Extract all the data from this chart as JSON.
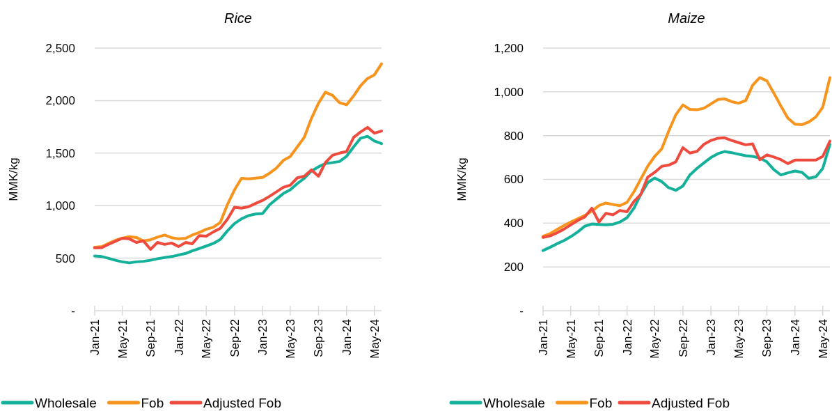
{
  "chart_data": [
    {
      "type": "line",
      "title": "Rice",
      "ylabel": "MMK/kg",
      "xlim": [
        "2021-01",
        "2024-06"
      ],
      "ylim": [
        0,
        2500
      ],
      "xticks": [
        {
          "value": "2021-01",
          "label": "Jan-21"
        },
        {
          "value": "2021-05",
          "label": "May-21"
        },
        {
          "value": "2021-09",
          "label": "Sep-21"
        },
        {
          "value": "2022-01",
          "label": "Jan-22"
        },
        {
          "value": "2022-05",
          "label": "May-22"
        },
        {
          "value": "2022-09",
          "label": "Sep-22"
        },
        {
          "value": "2023-01",
          "label": "Jan-23"
        },
        {
          "value": "2023-05",
          "label": "May-23"
        },
        {
          "value": "2023-09",
          "label": "Sep-23"
        },
        {
          "value": "2024-01",
          "label": "Jan-24"
        },
        {
          "value": "2024-05",
          "label": "May-24"
        }
      ],
      "yticks": [
        {
          "value": 0,
          "label": "-"
        },
        500,
        {
          "value": 1000,
          "label": "1,000"
        },
        {
          "value": 1500,
          "label": "1,500"
        },
        {
          "value": 2000,
          "label": "2,000"
        },
        {
          "value": 2500,
          "label": "2,500"
        }
      ],
      "grid": "y",
      "legend": "bottom",
      "x": [
        "2021-01",
        "2021-02",
        "2021-03",
        "2021-04",
        "2021-05",
        "2021-06",
        "2021-07",
        "2021-08",
        "2021-09",
        "2021-10",
        "2021-11",
        "2021-12",
        "2022-01",
        "2022-02",
        "2022-03",
        "2022-04",
        "2022-05",
        "2022-06",
        "2022-07",
        "2022-08",
        "2022-09",
        "2022-10",
        "2022-11",
        "2022-12",
        "2023-01",
        "2023-02",
        "2023-03",
        "2023-04",
        "2023-05",
        "2023-06",
        "2023-07",
        "2023-08",
        "2023-09",
        "2023-10",
        "2023-11",
        "2023-12",
        "2024-01",
        "2024-02",
        "2024-03",
        "2024-04",
        "2024-05",
        "2024-06"
      ],
      "series": [
        {
          "name": "Wholesale",
          "color": "#13b09a",
          "values": [
            520,
            515,
            500,
            480,
            465,
            455,
            465,
            470,
            480,
            495,
            505,
            515,
            530,
            545,
            570,
            592,
            615,
            640,
            678,
            760,
            830,
            875,
            905,
            920,
            925,
            1010,
            1060,
            1115,
            1150,
            1210,
            1260,
            1330,
            1370,
            1400,
            1410,
            1420,
            1470,
            1560,
            1640,
            1660,
            1615,
            1590
          ]
        },
        {
          "name": "Fob",
          "color": "#f7941d",
          "values": [
            604,
            610,
            640,
            670,
            690,
            705,
            697,
            665,
            675,
            700,
            720,
            695,
            684,
            690,
            720,
            745,
            775,
            795,
            840,
            1010,
            1150,
            1260,
            1255,
            1262,
            1268,
            1310,
            1355,
            1430,
            1467,
            1560,
            1650,
            1830,
            1975,
            2080,
            2050,
            1980,
            1960,
            2045,
            2140,
            2210,
            2245,
            2350
          ]
        },
        {
          "name": "Adjusted Fob",
          "color": "#ee4b3e",
          "values": [
            598,
            600,
            630,
            660,
            690,
            684,
            650,
            664,
            584,
            650,
            631,
            644,
            611,
            650,
            637,
            715,
            710,
            750,
            784,
            870,
            985,
            976,
            990,
            1020,
            1050,
            1090,
            1130,
            1175,
            1195,
            1265,
            1280,
            1340,
            1280,
            1410,
            1480,
            1500,
            1515,
            1650,
            1700,
            1745,
            1690,
            1710
          ]
        }
      ]
    },
    {
      "type": "line",
      "title": "Maize",
      "ylabel": "MMK/kg",
      "xlim": [
        "2021-01",
        "2024-06"
      ],
      "ylim": [
        0,
        1200
      ],
      "xticks": [
        {
          "value": "2021-01",
          "label": "Jan-21"
        },
        {
          "value": "2021-05",
          "label": "May-21"
        },
        {
          "value": "2021-09",
          "label": "Sep-21"
        },
        {
          "value": "2022-01",
          "label": "Jan-22"
        },
        {
          "value": "2022-05",
          "label": "May-22"
        },
        {
          "value": "2022-09",
          "label": "Sep-22"
        },
        {
          "value": "2023-01",
          "label": "Jan-23"
        },
        {
          "value": "2023-05",
          "label": "May-23"
        },
        {
          "value": "2023-09",
          "label": "Sep-23"
        },
        {
          "value": "2024-01",
          "label": "Jan-24"
        },
        {
          "value": "2024-05",
          "label": "May-24"
        }
      ],
      "yticks": [
        {
          "value": 0,
          "label": "-"
        },
        200,
        400,
        600,
        800,
        {
          "value": 1000,
          "label": "1,000"
        },
        {
          "value": 1200,
          "label": "1,200"
        }
      ],
      "grid": "y",
      "legend": "bottom",
      "x": [
        "2021-01",
        "2021-02",
        "2021-03",
        "2021-04",
        "2021-05",
        "2021-06",
        "2021-07",
        "2021-08",
        "2021-09",
        "2021-10",
        "2021-11",
        "2021-12",
        "2022-01",
        "2022-02",
        "2022-03",
        "2022-04",
        "2022-05",
        "2022-06",
        "2022-07",
        "2022-08",
        "2022-09",
        "2022-10",
        "2022-11",
        "2022-12",
        "2023-01",
        "2023-02",
        "2023-03",
        "2023-04",
        "2023-05",
        "2023-06",
        "2023-07",
        "2023-08",
        "2023-09",
        "2023-10",
        "2023-11",
        "2023-12",
        "2024-01",
        "2024-02",
        "2024-03",
        "2024-04",
        "2024-05",
        "2024-06"
      ],
      "series": [
        {
          "name": "Wholesale",
          "color": "#13b09a",
          "values": [
            275,
            290,
            305,
            320,
            338,
            360,
            386,
            396,
            394,
            392,
            395,
            405,
            425,
            470,
            530,
            585,
            606,
            590,
            562,
            550,
            570,
            620,
            650,
            675,
            700,
            718,
            727,
            722,
            715,
            708,
            705,
            698,
            680,
            645,
            620,
            630,
            638,
            632,
            605,
            612,
            650,
            760
          ]
        },
        {
          "name": "Fob",
          "color": "#f7941d",
          "values": [
            340,
            352,
            370,
            388,
            405,
            420,
            435,
            455,
            480,
            492,
            485,
            480,
            495,
            545,
            600,
            660,
            705,
            740,
            820,
            895,
            940,
            920,
            918,
            925,
            945,
            965,
            968,
            955,
            948,
            960,
            1030,
            1065,
            1050,
            995,
            935,
            880,
            852,
            850,
            862,
            885,
            930,
            1065
          ]
        },
        {
          "name": "Adjusted Fob",
          "color": "#ee4b3e",
          "values": [
            335,
            342,
            355,
            372,
            392,
            412,
            428,
            468,
            405,
            445,
            438,
            458,
            452,
            500,
            530,
            610,
            632,
            660,
            665,
            680,
            745,
            720,
            728,
            760,
            778,
            788,
            790,
            778,
            768,
            758,
            762,
            690,
            712,
            702,
            690,
            672,
            688,
            688,
            688,
            688,
            705,
            775
          ]
        }
      ]
    }
  ]
}
